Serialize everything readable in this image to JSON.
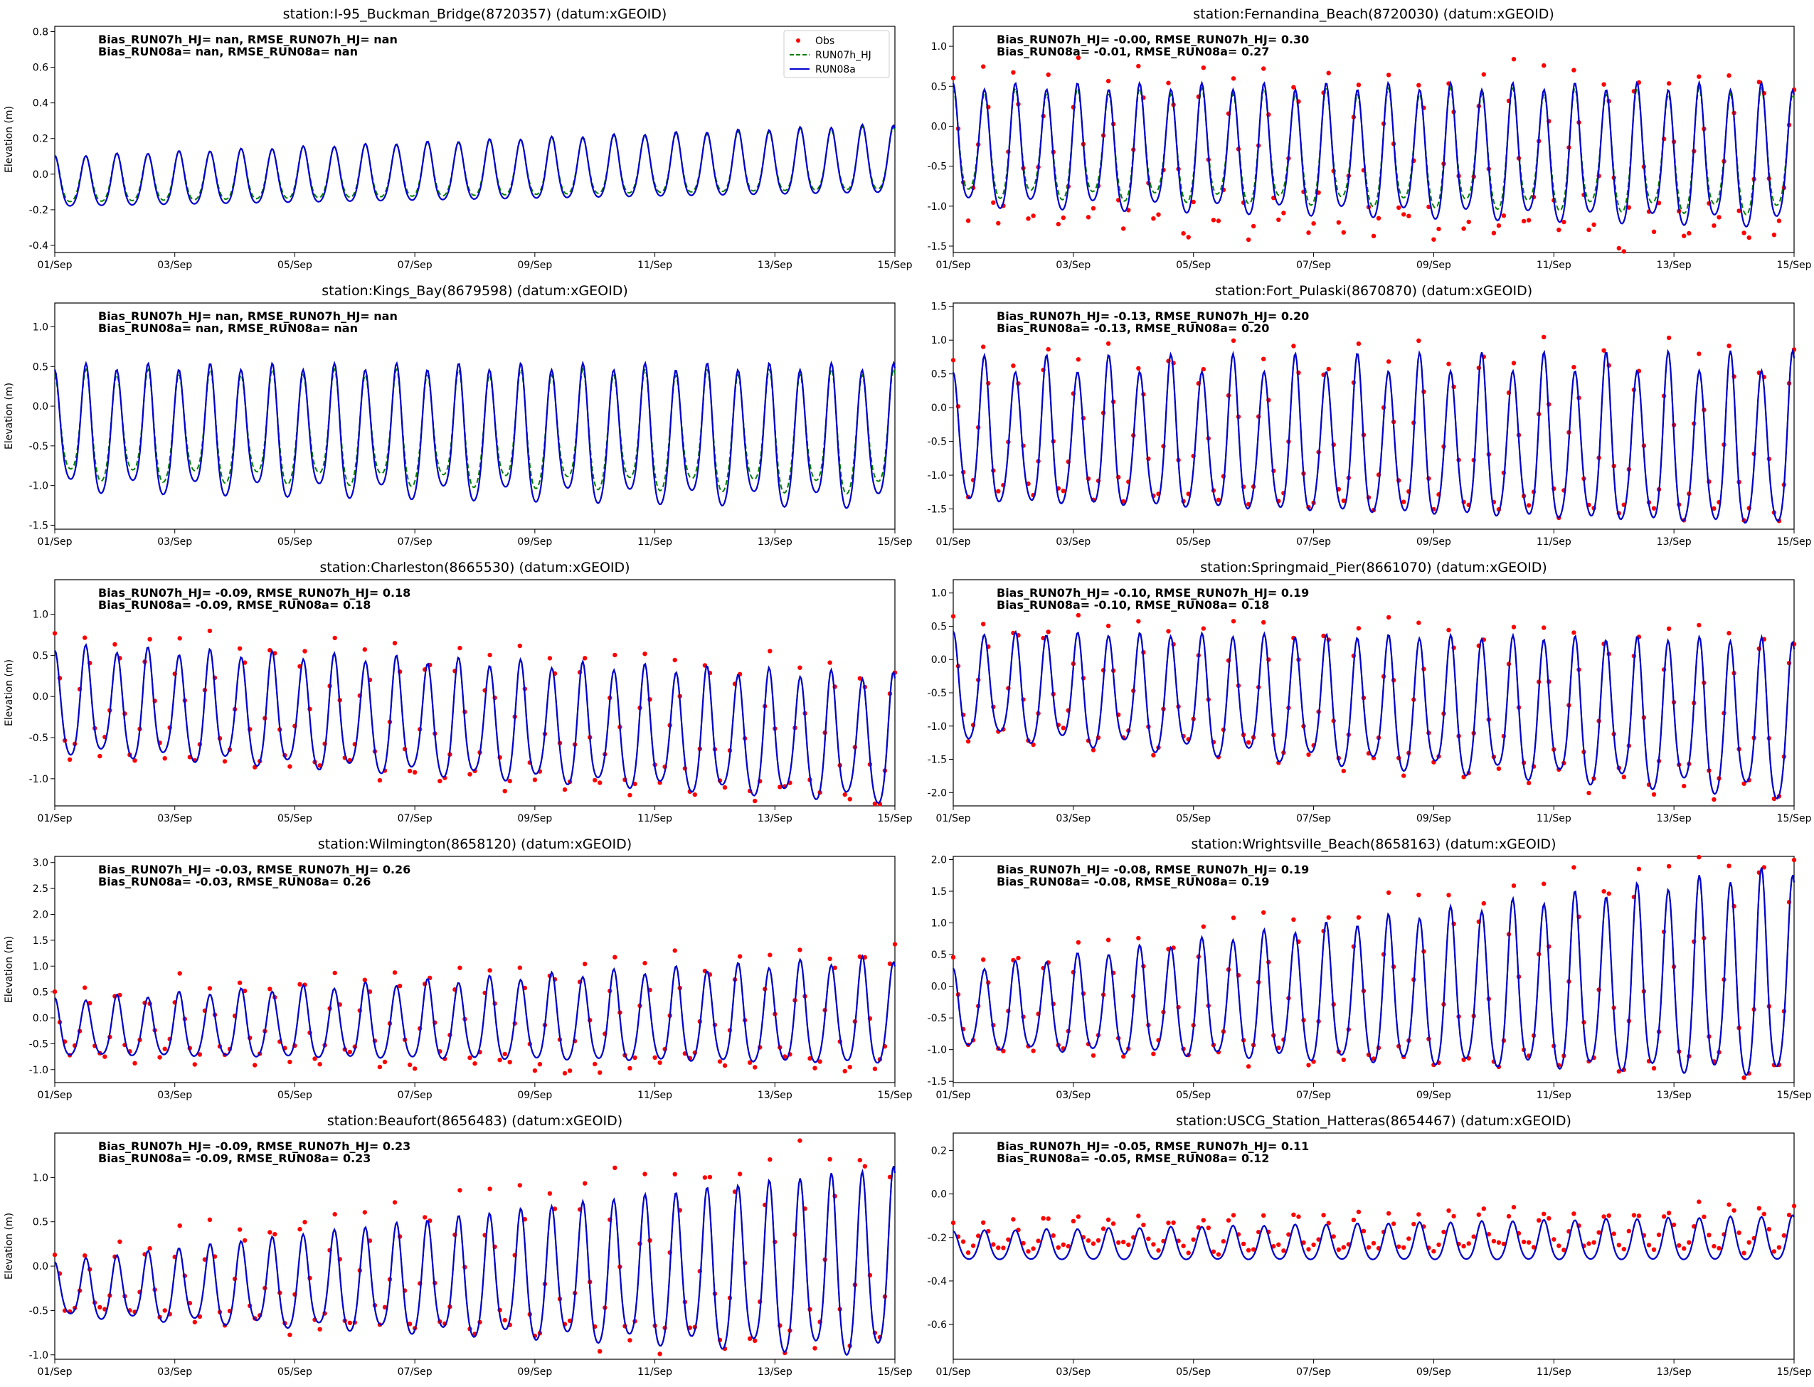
{
  "figure": {
    "x_tick_labels": [
      "01/Sep",
      "03/Sep",
      "05/Sep",
      "07/Sep",
      "09/Sep",
      "11/Sep",
      "13/Sep",
      "15/Sep"
    ],
    "ylabel": "Elevation (m)",
    "legend": [
      {
        "label": "Obs",
        "style": "marker",
        "color": "#ff0000"
      },
      {
        "label": "RUN07h_HJ",
        "style": "dashed",
        "color": "#008000"
      },
      {
        "label": "RUN08a",
        "style": "solid",
        "color": "#0000cc"
      }
    ]
  },
  "chart_data": [
    {
      "type": "line",
      "title": "station:I-95_Buckman_Bridge(8720357) (datum:xGEOID)",
      "xlabel": "",
      "ylabel": "Elevation (m)",
      "xlim": [
        0,
        14
      ],
      "ylim": [
        -0.44,
        0.83
      ],
      "yticks": [
        -0.4,
        -0.2,
        0.0,
        0.2,
        0.4,
        0.6,
        0.8
      ],
      "ytick_labels": [
        "-0.4",
        "-0.2",
        "0.0",
        "0.2",
        "0.4",
        "0.6",
        "0.8"
      ],
      "stats": [
        "Bias_RUN07h_HJ=   nan, RMSE_RUN07h_HJ=   nan",
        "Bias_RUN08a=   nan, RMSE_RUN08a=   nan"
      ],
      "show_legend": true,
      "show_ylabel": true,
      "has_obs": false,
      "series": [
        {
          "name": "RUN08a",
          "low_start": -0.18,
          "low_end": -0.1,
          "high_start": 0.1,
          "high_end": 0.28,
          "diurnal": 0.06
        },
        {
          "name": "RUN07h_HJ",
          "scale": 0.92,
          "offset": 0.01
        },
        {
          "name": "Obs",
          "bias": 0,
          "noise": 0
        }
      ]
    },
    {
      "type": "line",
      "title": "station:Fernandina_Beach(8720030) (datum:xGEOID)",
      "xlabel": "",
      "ylabel": "",
      "xlim": [
        0,
        14
      ],
      "ylim": [
        -1.58,
        1.25
      ],
      "yticks": [
        -1.5,
        -1.0,
        -0.5,
        0.0,
        0.5,
        1.0
      ],
      "ytick_labels": [
        "-1.5",
        "-1.0",
        "-0.5",
        "0.0",
        "0.5",
        "1.0"
      ],
      "stats": [
        "Bias_RUN07h_HJ= -0.00, RMSE_RUN07h_HJ=  0.30",
        "Bias_RUN08a= -0.01, RMSE_RUN08a=  0.27"
      ],
      "show_legend": false,
      "show_ylabel": false,
      "has_obs": true,
      "series": [
        {
          "name": "RUN08a",
          "low_start": -0.95,
          "low_end": -1.2,
          "high_start": 0.5,
          "high_end": 0.5,
          "diurnal": 0.2
        },
        {
          "name": "RUN07h_HJ",
          "scale": 0.88,
          "offset": 0.0
        },
        {
          "name": "Obs",
          "bias": 0.0,
          "noise": 0.18,
          "amp": 1.25
        }
      ]
    },
    {
      "type": "line",
      "title": "station:Kings_Bay(8679598) (datum:xGEOID)",
      "xlabel": "",
      "ylabel": "Elevation (m)",
      "xlim": [
        0,
        14
      ],
      "ylim": [
        -1.55,
        1.3
      ],
      "yticks": [
        -1.5,
        -1.0,
        -0.5,
        0.0,
        0.5,
        1.0
      ],
      "ytick_labels": [
        "-1.5",
        "-1.0",
        "-0.5",
        "0.0",
        "0.5",
        "1.0"
      ],
      "stats": [
        "Bias_RUN07h_HJ=   nan, RMSE_RUN07h_HJ=   nan",
        "Bias_RUN08a=   nan, RMSE_RUN08a=   nan"
      ],
      "show_legend": false,
      "show_ylabel": true,
      "has_obs": false,
      "series": [
        {
          "name": "RUN08a",
          "low_start": -1.0,
          "low_end": -1.2,
          "high_start": 0.5,
          "high_end": 0.5,
          "diurnal": 0.25
        },
        {
          "name": "RUN07h_HJ",
          "scale": 0.86,
          "offset": 0.0
        },
        {
          "name": "Obs",
          "bias": 0,
          "noise": 0
        }
      ]
    },
    {
      "type": "line",
      "title": "station:Fort_Pulaski(8670870) (datum:xGEOID)",
      "xlabel": "",
      "ylabel": "",
      "xlim": [
        0,
        14
      ],
      "ylim": [
        -1.8,
        1.55
      ],
      "yticks": [
        -1.5,
        -1.0,
        -0.5,
        0.0,
        0.5,
        1.0,
        1.5
      ],
      "ytick_labels": [
        "-1.5",
        "-1.0",
        "-0.5",
        "0.0",
        "0.5",
        "1.0",
        "1.5"
      ],
      "stats": [
        "Bias_RUN07h_HJ= -0.13, RMSE_RUN07h_HJ=  0.20",
        "Bias_RUN08a= -0.13, RMSE_RUN08a=  0.20"
      ],
      "show_legend": false,
      "show_ylabel": false,
      "has_obs": true,
      "series": [
        {
          "name": "RUN08a",
          "low_start": -1.35,
          "low_end": -1.7,
          "high_start": 0.65,
          "high_end": 0.7,
          "diurnal": 0.25
        },
        {
          "name": "RUN07h_HJ",
          "scale": 1.0,
          "offset": 0.0
        },
        {
          "name": "Obs",
          "bias": 0.13,
          "noise": 0.08,
          "amp": 1.05
        }
      ]
    },
    {
      "type": "line",
      "title": "station:Charleston(8665530) (datum:xGEOID)",
      "xlabel": "",
      "ylabel": "Elevation (m)",
      "xlim": [
        0,
        14
      ],
      "ylim": [
        -1.33,
        1.42
      ],
      "yticks": [
        -1.0,
        -0.5,
        0.0,
        0.5,
        1.0
      ],
      "ytick_labels": [
        "-1.0",
        "-0.5",
        "0.0",
        "0.5",
        "1.0"
      ],
      "stats": [
        "Bias_RUN07h_HJ= -0.09, RMSE_RUN07h_HJ=  0.18",
        "Bias_RUN08a= -0.09, RMSE_RUN08a=  0.18"
      ],
      "show_legend": false,
      "show_ylabel": true,
      "has_obs": true,
      "series": [
        {
          "name": "RUN08a",
          "low_start": -0.65,
          "low_end": -1.25,
          "high_start": 0.6,
          "high_end": 0.25,
          "diurnal": 0.2
        },
        {
          "name": "RUN07h_HJ",
          "scale": 1.0,
          "offset": 0.0
        },
        {
          "name": "Obs",
          "bias": 0.09,
          "noise": 0.1,
          "amp": 1.15
        }
      ]
    },
    {
      "type": "line",
      "title": "station:Springmaid_Pier(8661070) (datum:xGEOID)",
      "xlabel": "",
      "ylabel": "",
      "xlim": [
        0,
        14
      ],
      "ylim": [
        -2.2,
        1.2
      ],
      "yticks": [
        -2.0,
        -1.5,
        -1.0,
        -0.5,
        0.0,
        0.5,
        1.0
      ],
      "ytick_labels": [
        "-2.0",
        "-1.5",
        "-1.0",
        "-0.5",
        "0.0",
        "0.5",
        "1.0"
      ],
      "stats": [
        "Bias_RUN07h_HJ= -0.10, RMSE_RUN07h_HJ=  0.19",
        "Bias_RUN08a= -0.10, RMSE_RUN08a=  0.18"
      ],
      "show_legend": false,
      "show_ylabel": false,
      "has_obs": true,
      "series": [
        {
          "name": "RUN08a",
          "low_start": -1.1,
          "low_end": -2.0,
          "high_start": 0.4,
          "high_end": 0.3,
          "diurnal": 0.2
        },
        {
          "name": "RUN07h_HJ",
          "scale": 1.0,
          "offset": 0.0
        },
        {
          "name": "Obs",
          "bias": 0.1,
          "noise": 0.1,
          "amp": 1.1
        }
      ]
    },
    {
      "type": "line",
      "title": "station:Wilmington(8658120) (datum:xGEOID)",
      "xlabel": "",
      "ylabel": "Elevation (m)",
      "xlim": [
        0,
        14
      ],
      "ylim": [
        -1.25,
        3.12
      ],
      "yticks": [
        -1.0,
        -0.5,
        0.0,
        0.5,
        1.0,
        1.5,
        2.0,
        2.5,
        3.0
      ],
      "ytick_labels": [
        "-1.0",
        "-0.5",
        "0.0",
        "0.5",
        "1.0",
        "1.5",
        "2.0",
        "2.5",
        "3.0"
      ],
      "stats": [
        "Bias_RUN07h_HJ= -0.03, RMSE_RUN07h_HJ=  0.26",
        "Bias_RUN08a= -0.03, RMSE_RUN08a=  0.26"
      ],
      "show_legend": false,
      "show_ylabel": true,
      "has_obs": true,
      "series": [
        {
          "name": "RUN08a",
          "low_start": -0.7,
          "low_end": -0.85,
          "high_start": 0.35,
          "high_end": 1.15,
          "diurnal": 0.15
        },
        {
          "name": "RUN07h_HJ",
          "scale": 1.0,
          "offset": 0.0
        },
        {
          "name": "Obs",
          "bias": 0.03,
          "noise": 0.2,
          "amp": 1.2
        }
      ]
    },
    {
      "type": "line",
      "title": "station:Wrightsville_Beach(8658163) (datum:xGEOID)",
      "xlabel": "",
      "ylabel": "",
      "xlim": [
        0,
        14
      ],
      "ylim": [
        -1.52,
        2.05
      ],
      "yticks": [
        -1.5,
        -1.0,
        -0.5,
        0.0,
        0.5,
        1.0,
        1.5,
        2.0
      ],
      "ytick_labels": [
        "-1.5",
        "-1.0",
        "-0.5",
        "0.0",
        "0.5",
        "1.0",
        "1.5",
        "2.0"
      ],
      "stats": [
        "Bias_RUN07h_HJ= -0.08, RMSE_RUN07h_HJ=  0.19",
        "Bias_RUN08a= -0.08, RMSE_RUN08a=  0.19"
      ],
      "show_legend": false,
      "show_ylabel": false,
      "has_obs": true,
      "series": [
        {
          "name": "RUN08a",
          "low_start": -0.95,
          "low_end": -1.35,
          "high_start": 0.25,
          "high_end": 1.85,
          "diurnal": 0.15
        },
        {
          "name": "RUN07h_HJ",
          "scale": 1.0,
          "offset": 0.0
        },
        {
          "name": "Obs",
          "bias": 0.08,
          "noise": 0.12,
          "amp": 1.15
        }
      ]
    },
    {
      "type": "line",
      "title": "station:Beaufort(8656483) (datum:xGEOID)",
      "xlabel": "",
      "ylabel": "Elevation (m)",
      "xlim": [
        0,
        14
      ],
      "ylim": [
        -1.05,
        1.5
      ],
      "yticks": [
        -1.0,
        -0.5,
        0.0,
        0.5,
        1.0
      ],
      "ytick_labels": [
        "-1.0",
        "-0.5",
        "0.0",
        "0.5",
        "1.0"
      ],
      "stats": [
        "Bias_RUN07h_HJ= -0.09, RMSE_RUN07h_HJ=  0.23",
        "Bias_RUN08a= -0.09, RMSE_RUN08a=  0.23"
      ],
      "show_legend": false,
      "show_ylabel": true,
      "has_obs": true,
      "series": [
        {
          "name": "RUN08a",
          "low_start": -0.55,
          "low_end": -0.95,
          "high_start": 0.05,
          "high_end": 1.12,
          "diurnal": 0.15
        },
        {
          "name": "RUN07h_HJ",
          "scale": 1.0,
          "offset": 0.0
        },
        {
          "name": "Obs",
          "bias": 0.09,
          "noise": 0.12,
          "amp": 1.2
        }
      ]
    },
    {
      "type": "line",
      "title": "station:USCG_Station_Hatteras(8654467) (datum:xGEOID)",
      "xlabel": "",
      "ylabel": "",
      "xlim": [
        0,
        14
      ],
      "ylim": [
        -0.76,
        0.28
      ],
      "yticks": [
        -0.6,
        -0.4,
        -0.2,
        0.0,
        0.2
      ],
      "ytick_labels": [
        "-0.6",
        "-0.4",
        "-0.2",
        "0.0",
        "0.2"
      ],
      "stats": [
        "Bias_RUN07h_HJ= -0.05, RMSE_RUN07h_HJ=  0.11",
        "Bias_RUN08a= -0.05, RMSE_RUN08a=  0.12"
      ],
      "show_legend": false,
      "show_ylabel": false,
      "has_obs": true,
      "series": [
        {
          "name": "RUN08a",
          "low_start": -0.3,
          "low_end": -0.3,
          "high_start": -0.17,
          "high_end": -0.1,
          "diurnal": 0.05
        },
        {
          "name": "RUN07h_HJ",
          "scale": 1.0,
          "offset": 0.0
        },
        {
          "name": "Obs",
          "bias": 0.05,
          "noise": 0.03,
          "amp": 1.0
        }
      ]
    }
  ]
}
